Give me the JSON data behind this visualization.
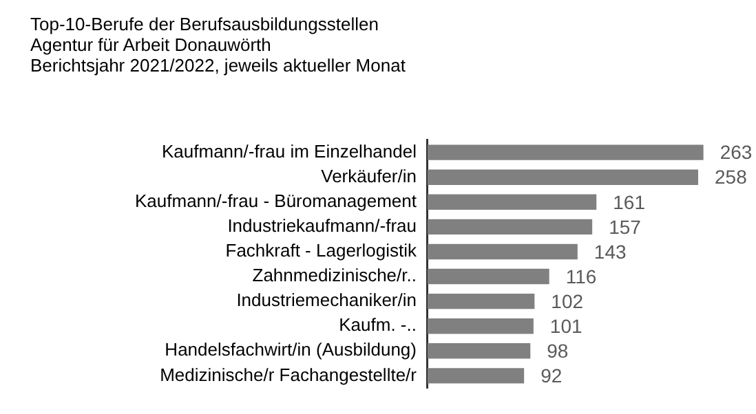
{
  "chart_data": {
    "type": "bar",
    "orientation": "horizontal",
    "title": "Top-10-Berufe der Berufsausbildungsstellen",
    "subtitle": "Agentur für Arbeit Donauwörth\nBerichtsjahr 2021/2022, jeweils aktueller Monat",
    "categories": [
      "Kaufmann/-frau im Einzelhandel",
      "Verkäufer/in",
      "Kaufmann/-frau - Büromanagement",
      "Industriekaufmann/-frau",
      "Fachkraft - Lagerlogistik",
      "Zahnmedizinische/r..",
      "Industriemechaniker/in",
      "Kaufm. -..",
      "Handelsfachwirt/in (Ausbildung)",
      "Medizinische/r Fachangestellte/r"
    ],
    "values": [
      263,
      258,
      161,
      157,
      143,
      116,
      102,
      101,
      98,
      92
    ],
    "color": "#808080",
    "data_labels": true,
    "legend": false,
    "tick_labels": "y"
  }
}
